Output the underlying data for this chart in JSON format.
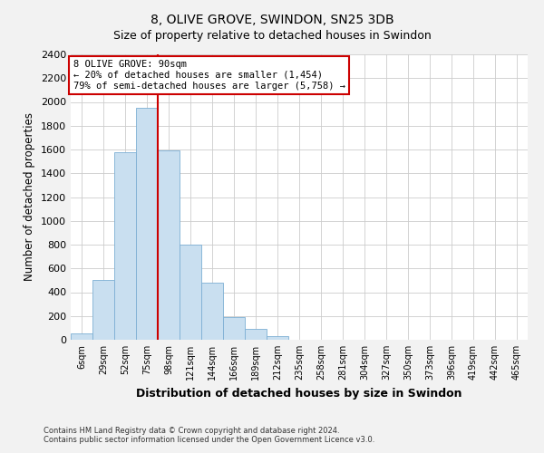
{
  "title": "8, OLIVE GROVE, SWINDON, SN25 3DB",
  "subtitle": "Size of property relative to detached houses in Swindon",
  "xlabel": "Distribution of detached houses by size in Swindon",
  "ylabel": "Number of detached properties",
  "bar_color": "#c9dff0",
  "bar_edge_color": "#7dafd4",
  "categories": [
    "6sqm",
    "29sqm",
    "52sqm",
    "75sqm",
    "98sqm",
    "121sqm",
    "144sqm",
    "166sqm",
    "189sqm",
    "212sqm",
    "235sqm",
    "258sqm",
    "281sqm",
    "304sqm",
    "327sqm",
    "350sqm",
    "373sqm",
    "396sqm",
    "419sqm",
    "442sqm",
    "465sqm"
  ],
  "values": [
    50,
    500,
    1580,
    1950,
    1590,
    800,
    480,
    190,
    90,
    30,
    0,
    0,
    0,
    0,
    0,
    0,
    0,
    0,
    0,
    0,
    0
  ],
  "ylim": [
    0,
    2400
  ],
  "yticks": [
    0,
    200,
    400,
    600,
    800,
    1000,
    1200,
    1400,
    1600,
    1800,
    2000,
    2200,
    2400
  ],
  "vline_color": "#cc0000",
  "annotation_title": "8 OLIVE GROVE: 90sqm",
  "annotation_line1": "← 20% of detached houses are smaller (1,454)",
  "annotation_line2": "79% of semi-detached houses are larger (5,758) →",
  "annotation_box_color": "#ffffff",
  "annotation_box_edge": "#cc0000",
  "footer1": "Contains HM Land Registry data © Crown copyright and database right 2024.",
  "footer2": "Contains public sector information licensed under the Open Government Licence v3.0.",
  "bg_color": "#f2f2f2",
  "plot_bg_color": "#ffffff",
  "grid_color": "#cccccc"
}
